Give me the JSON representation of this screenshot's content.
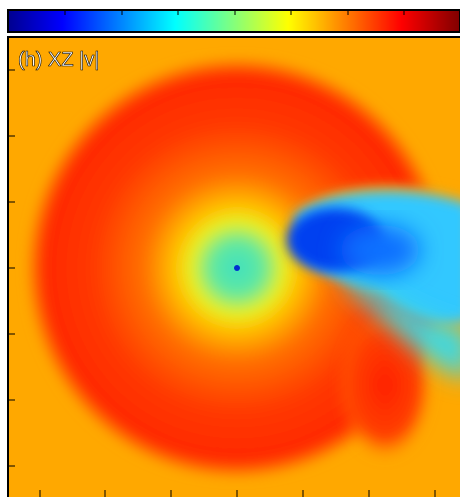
{
  "panel": {
    "label": "(h) XZ |v|"
  }
}
